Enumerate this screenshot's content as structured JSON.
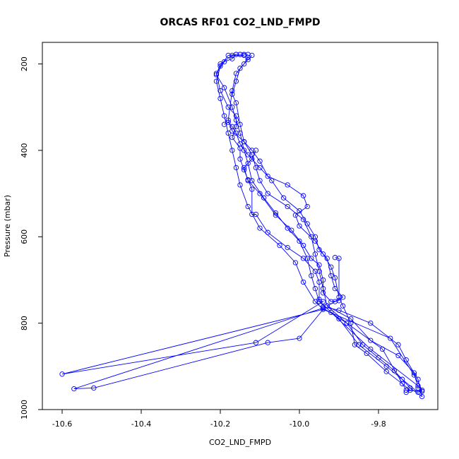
{
  "chart_data": {
    "type": "line",
    "title": "ORCAS RF01 CO2_LND_FMPD",
    "xlabel": "CO2_LND_FMPD",
    "ylabel": "Pressure (mbar)",
    "xlim": [
      -10.65,
      -9.65
    ],
    "ylim": [
      1000,
      150
    ],
    "y_inverted": true,
    "grid": false,
    "x_ticks": [
      -10.6,
      -10.4,
      -10.2,
      -10.0,
      -9.8
    ],
    "x_tick_labels": [
      "-10.6",
      "-10.4",
      "-10.2",
      "-10.0",
      "-9.8"
    ],
    "y_ticks": [
      200,
      400,
      600,
      800,
      1000
    ],
    "y_tick_labels": [
      "200",
      "400",
      "600",
      "800",
      "1000"
    ],
    "series_color": "#0000ff",
    "series": [
      {
        "values": [
          [
            -10.14,
            180
          ],
          [
            -10.17,
            180
          ],
          [
            -10.2,
            200
          ],
          [
            -10.21,
            225
          ],
          [
            -10.19,
            255
          ],
          [
            -10.17,
            300
          ],
          [
            -10.16,
            330
          ],
          [
            -10.15,
            360
          ],
          [
            -10.14,
            400
          ],
          [
            -10.13,
            430
          ],
          [
            -10.12,
            470
          ],
          [
            -10.09,
            510
          ],
          [
            -10.06,
            545
          ],
          [
            -10.03,
            580
          ],
          [
            -10.0,
            610
          ],
          [
            -9.98,
            650
          ],
          [
            -9.97,
            690
          ],
          [
            -9.96,
            720
          ],
          [
            -9.95,
            750
          ],
          [
            -9.9,
            790
          ],
          [
            -9.85,
            850
          ],
          [
            -9.78,
            900
          ],
          [
            -9.74,
            930
          ],
          [
            -9.7,
            960
          ],
          [
            -9.69,
            955
          ],
          [
            -9.71,
            920
          ],
          [
            -9.77,
            835
          ],
          [
            -9.94,
            768
          ],
          [
            -9.96,
            750
          ],
          [
            -9.99,
            705
          ],
          [
            -10.01,
            660
          ],
          [
            -10.05,
            620
          ],
          [
            -10.1,
            580
          ],
          [
            -10.13,
            530
          ],
          [
            -10.15,
            480
          ],
          [
            -10.16,
            440
          ],
          [
            -10.17,
            400
          ],
          [
            -10.18,
            360
          ],
          [
            -10.19,
            320
          ],
          [
            -10.2,
            280
          ],
          [
            -10.21,
            240
          ],
          [
            -10.2,
            205
          ],
          [
            -10.18,
            180
          ],
          [
            -10.16,
            178
          ]
        ]
      },
      {
        "values": [
          [
            -10.12,
            180
          ],
          [
            -10.13,
            190
          ],
          [
            -10.15,
            210
          ],
          [
            -10.16,
            240
          ],
          [
            -10.17,
            270
          ],
          [
            -10.16,
            290
          ],
          [
            -10.15,
            340
          ],
          [
            -10.14,
            380
          ],
          [
            -10.12,
            410
          ],
          [
            -10.11,
            440
          ],
          [
            -10.1,
            470
          ],
          [
            -10.08,
            500
          ],
          [
            -10.03,
            530
          ],
          [
            -9.99,
            560
          ],
          [
            -9.97,
            600
          ],
          [
            -9.96,
            640
          ],
          [
            -9.95,
            680
          ],
          [
            -9.94,
            720
          ],
          [
            -9.93,
            760
          ],
          [
            -9.88,
            800
          ],
          [
            -9.84,
            850
          ],
          [
            -9.8,
            880
          ],
          [
            -9.76,
            910
          ],
          [
            -9.72,
            950
          ],
          [
            -9.69,
            970
          ],
          [
            -9.7,
            930
          ],
          [
            -9.73,
            885
          ],
          [
            -9.75,
            850
          ],
          [
            -9.82,
            800
          ],
          [
            -9.9,
            770
          ],
          [
            -9.94,
            762
          ]
        ]
      },
      {
        "values": [
          [
            -10.13,
            178
          ],
          [
            -10.14,
            178
          ],
          [
            -10.15,
            178
          ],
          [
            -10.15,
            178
          ],
          [
            -10.16,
            178
          ],
          [
            -10.17,
            188
          ],
          [
            -10.19,
            195
          ],
          [
            -10.21,
            222
          ],
          [
            -10.2,
            262
          ],
          [
            -10.18,
            300
          ],
          [
            -10.16,
            320
          ],
          [
            -10.16,
            345
          ],
          [
            -10.17,
            370
          ],
          [
            -10.15,
            395
          ],
          [
            -10.15,
            420
          ],
          [
            -10.14,
            445
          ],
          [
            -10.13,
            468
          ],
          [
            -10.12,
            490
          ],
          [
            -10.12,
            548
          ],
          [
            -10.11,
            548
          ],
          [
            -10.08,
            590
          ],
          [
            -10.03,
            625
          ],
          [
            -9.99,
            650
          ],
          [
            -9.96,
            680
          ],
          [
            -9.95,
            705
          ],
          [
            -9.95,
            745
          ],
          [
            -9.95,
            750
          ],
          [
            -9.94,
            750
          ],
          [
            -10.11,
            845
          ],
          [
            -10.6,
            918
          ],
          [
            -9.94,
            768
          ],
          [
            -10.0,
            835
          ],
          [
            -10.08,
            845
          ],
          [
            -10.52,
            950
          ],
          [
            -10.57,
            952
          ],
          [
            -9.94,
            765
          ],
          [
            -9.88,
            800
          ],
          [
            -9.79,
            860
          ],
          [
            -9.73,
            955
          ],
          [
            -9.69,
            958
          ],
          [
            -9.7,
            945
          ],
          [
            -9.82,
            860
          ],
          [
            -9.92,
            775
          ]
        ]
      },
      {
        "values": [
          [
            -10.13,
            185
          ],
          [
            -10.14,
            200
          ],
          [
            -10.16,
            222
          ],
          [
            -10.17,
            262
          ],
          [
            -10.18,
            330
          ],
          [
            -10.17,
            355
          ],
          [
            -10.14,
            380
          ],
          [
            -10.12,
            400
          ],
          [
            -10.1,
            425
          ],
          [
            -10.08,
            460
          ],
          [
            -10.03,
            480
          ],
          [
            -9.99,
            505
          ],
          [
            -9.98,
            530
          ],
          [
            -10.01,
            550
          ],
          [
            -10.0,
            575
          ],
          [
            -9.96,
            610
          ],
          [
            -9.94,
            640
          ],
          [
            -9.92,
            670
          ],
          [
            -9.91,
            695
          ],
          [
            -9.9,
            740
          ],
          [
            -9.89,
            760
          ],
          [
            -9.87,
            800
          ],
          [
            -9.86,
            850
          ],
          [
            -9.83,
            870
          ],
          [
            -9.78,
            912
          ],
          [
            -9.74,
            940
          ],
          [
            -9.72,
            955
          ],
          [
            -9.73,
            960
          ]
        ]
      },
      {
        "values": [
          [
            -10.19,
            340
          ],
          [
            -10.18,
            335
          ],
          [
            -10.17,
            345
          ],
          [
            -10.16,
            360
          ],
          [
            -10.15,
            385
          ],
          [
            -10.13,
            410
          ],
          [
            -10.1,
            440
          ],
          [
            -10.07,
            470
          ],
          [
            -10.04,
            510
          ],
          [
            -10.0,
            540
          ],
          [
            -9.98,
            570
          ],
          [
            -9.96,
            600
          ],
          [
            -9.95,
            630
          ],
          [
            -9.93,
            650
          ],
          [
            -9.92,
            690
          ],
          [
            -9.91,
            720
          ],
          [
            -9.89,
            740
          ],
          [
            -9.91,
            750
          ],
          [
            -9.93,
            760
          ],
          [
            -9.87,
            790
          ],
          [
            -9.82,
            840
          ],
          [
            -9.75,
            875
          ],
          [
            -9.71,
            915
          ],
          [
            -9.7,
            950
          ]
        ]
      },
      {
        "values": [
          [
            -10.11,
            400
          ],
          [
            -10.12,
            420
          ],
          [
            -10.14,
            440
          ],
          [
            -10.13,
            470
          ],
          [
            -10.1,
            500
          ],
          [
            -10.06,
            550
          ],
          [
            -10.02,
            585
          ],
          [
            -9.99,
            620
          ],
          [
            -9.97,
            650
          ],
          [
            -9.95,
            665
          ],
          [
            -9.94,
            700
          ],
          [
            -9.94,
            730
          ],
          [
            -9.92,
            750
          ],
          [
            -9.9,
            748
          ],
          [
            -9.9,
            650
          ],
          [
            -9.91,
            648
          ]
        ]
      }
    ]
  }
}
